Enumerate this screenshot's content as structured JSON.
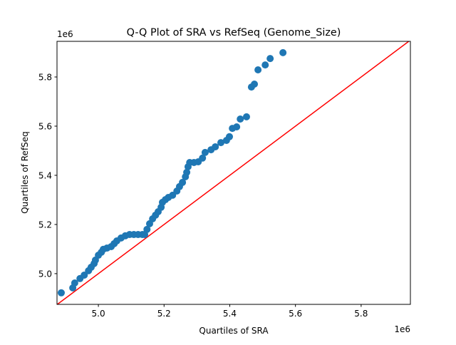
{
  "chart_data": {
    "type": "scatter",
    "title": "Q-Q Plot of SRA vs RefSeq (Genome_Size)",
    "xlabel": "Quartiles of SRA",
    "ylabel": "Quartiles of RefSeq",
    "x_offset_label": "1e6",
    "y_offset_label": "1e6",
    "xlim": [
      4.874,
      5.95
    ],
    "ylim": [
      4.875,
      5.945
    ],
    "xticks": [
      5.0,
      5.2,
      5.4,
      5.6,
      5.8
    ],
    "xtick_labels": [
      "5.0",
      "5.2",
      "5.4",
      "5.6",
      "5.8"
    ],
    "yticks": [
      5.0,
      5.2,
      5.4,
      5.6,
      5.8
    ],
    "ytick_labels": [
      "5.0",
      "5.2",
      "5.4",
      "5.6",
      "5.8"
    ],
    "grid": false,
    "point_color": "#1f77b4",
    "reference_line": {
      "type": "y=x",
      "color": "#ff0000"
    },
    "points": [
      [
        4.887,
        4.922
      ],
      [
        4.922,
        4.942
      ],
      [
        4.928,
        4.962
      ],
      [
        4.944,
        4.98
      ],
      [
        4.957,
        4.994
      ],
      [
        4.97,
        5.012
      ],
      [
        4.978,
        5.026
      ],
      [
        4.987,
        5.041
      ],
      [
        4.991,
        5.055
      ],
      [
        5.0,
        5.075
      ],
      [
        5.009,
        5.087
      ],
      [
        5.015,
        5.099
      ],
      [
        5.026,
        5.104
      ],
      [
        5.039,
        5.11
      ],
      [
        5.048,
        5.122
      ],
      [
        5.056,
        5.133
      ],
      [
        5.069,
        5.145
      ],
      [
        5.082,
        5.154
      ],
      [
        5.095,
        5.159
      ],
      [
        5.108,
        5.159
      ],
      [
        5.121,
        5.159
      ],
      [
        5.134,
        5.159
      ],
      [
        5.141,
        5.159
      ],
      [
        5.148,
        5.18
      ],
      [
        5.156,
        5.203
      ],
      [
        5.165,
        5.223
      ],
      [
        5.174,
        5.238
      ],
      [
        5.182,
        5.252
      ],
      [
        5.191,
        5.27
      ],
      [
        5.195,
        5.29
      ],
      [
        5.204,
        5.301
      ],
      [
        5.213,
        5.31
      ],
      [
        5.226,
        5.319
      ],
      [
        5.239,
        5.336
      ],
      [
        5.247,
        5.354
      ],
      [
        5.256,
        5.371
      ],
      [
        5.265,
        5.394
      ],
      [
        5.269,
        5.412
      ],
      [
        5.273,
        5.435
      ],
      [
        5.278,
        5.452
      ],
      [
        5.291,
        5.452
      ],
      [
        5.304,
        5.455
      ],
      [
        5.317,
        5.47
      ],
      [
        5.325,
        5.493
      ],
      [
        5.343,
        5.504
      ],
      [
        5.356,
        5.516
      ],
      [
        5.373,
        5.533
      ],
      [
        5.39,
        5.542
      ],
      [
        5.399,
        5.557
      ],
      [
        5.408,
        5.591
      ],
      [
        5.421,
        5.597
      ],
      [
        5.432,
        5.629
      ],
      [
        5.451,
        5.638
      ],
      [
        5.466,
        5.759
      ],
      [
        5.475,
        5.771
      ],
      [
        5.486,
        5.829
      ],
      [
        5.508,
        5.849
      ],
      [
        5.523,
        5.875
      ],
      [
        5.562,
        5.899
      ]
    ]
  }
}
